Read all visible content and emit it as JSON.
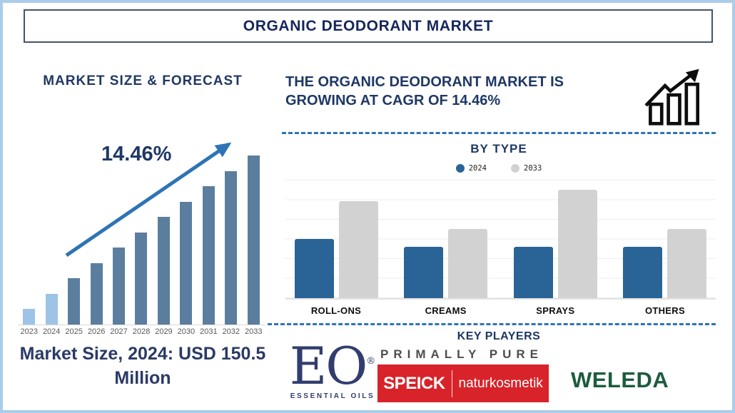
{
  "page": {
    "title": "ORGANIC DEODORANT MARKET"
  },
  "left_panel": {
    "heading": "MARKET SIZE & FORECAST",
    "growth_label": "14.46%",
    "market_size_text": "Market Size, 2024: USD 150.5 Million"
  },
  "right_panel": {
    "headline": "THE ORGANIC DEODORANT MARKET IS GROWING AT CAGR OF 14.46%",
    "by_type_heading": "BY TYPE",
    "key_players_heading": "KEY PLAYERS"
  },
  "key_players": [
    {
      "name": "EO Essential Oils",
      "main": "EO",
      "reg": "®",
      "sub": "ESSENTIAL OILS"
    },
    {
      "name": "Primally Pure",
      "text": "PRIMALLY PURE"
    },
    {
      "name": "Speick Naturkosmetik",
      "main": "SPEICK",
      "sub": "naturkosmetik"
    },
    {
      "name": "Weleda",
      "text": "WELEDA"
    }
  ],
  "colors": {
    "navy": "#1f3864",
    "forecast_bar_highlight": "#9dc3e6",
    "forecast_bar_default": "#5b7e9e",
    "trend_arrow": "#2e74b5",
    "dashed_divider": "#2e74b5",
    "bar_2024": "#2a6496",
    "bar_2033": "#d2d2d2",
    "speick_red": "#d8232a",
    "weleda_green": "#1d5c3e",
    "eo_navy": "#323d6e",
    "page_border": "#abcdea"
  },
  "chart_data": [
    {
      "id": "market-size-forecast",
      "type": "bar",
      "title": "MARKET SIZE & FORECAST",
      "categories": [
        "2023",
        "2024",
        "2025",
        "2026",
        "2027",
        "2028",
        "2029",
        "2030",
        "2031",
        "2032",
        "2033"
      ],
      "values_relative": [
        1,
        2,
        3,
        4,
        5,
        6,
        7,
        8,
        9,
        10,
        11
      ],
      "highlight_categories": [
        "2023",
        "2024"
      ],
      "annotation": "14.46%",
      "xlabel": "",
      "ylabel": "",
      "grid": false,
      "legend": false
    },
    {
      "id": "by-type",
      "type": "bar",
      "title": "BY TYPE",
      "categories": [
        "ROLL-ONS",
        "CREAMS",
        "SPRAYS",
        "OTHERS"
      ],
      "series": [
        {
          "name": "2024",
          "values": [
            3.0,
            2.6,
            2.6,
            2.6
          ]
        },
        {
          "name": "2033",
          "values": [
            4.9,
            3.5,
            5.5,
            3.5
          ]
        }
      ],
      "units": "relative (no value axis shown)",
      "ylim": [
        0,
        6
      ],
      "grid": true,
      "legend_position": "top"
    }
  ]
}
